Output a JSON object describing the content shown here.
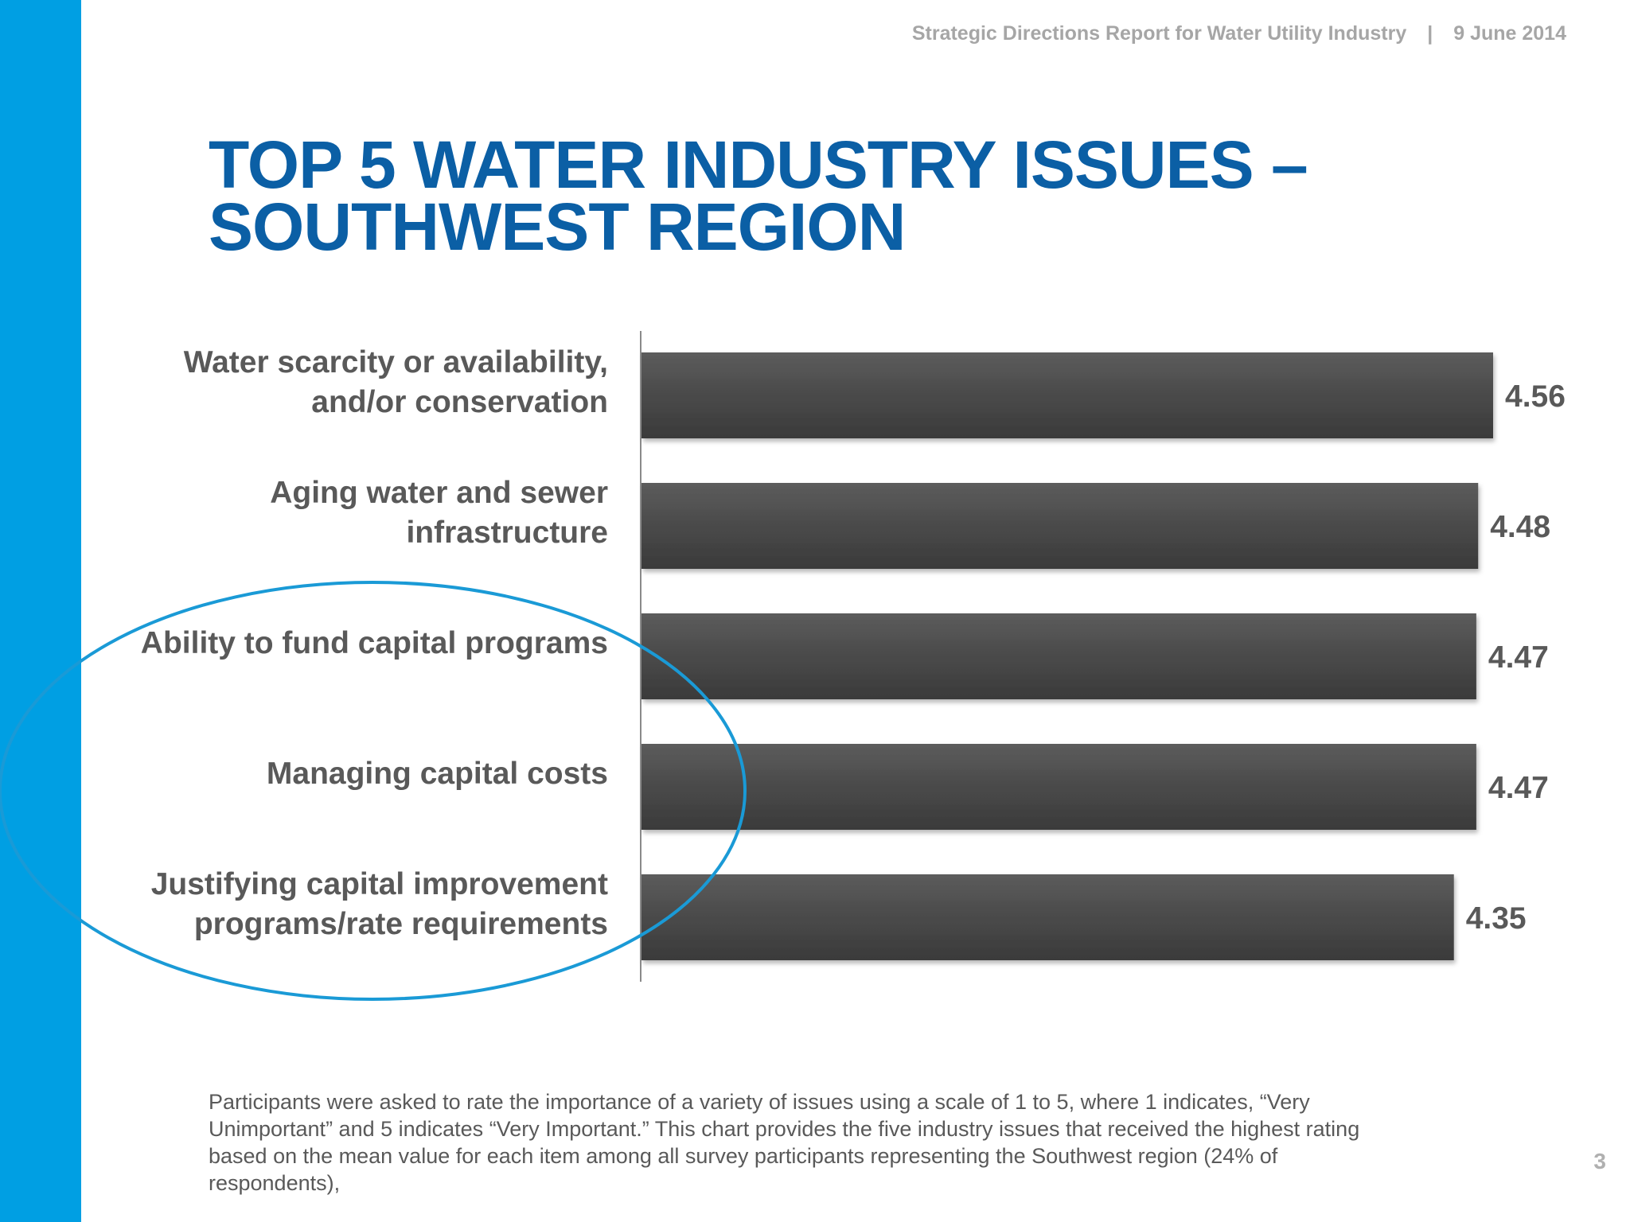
{
  "header": {
    "report_title": "Strategic Directions Report for Water Utility Industry",
    "separator": "|",
    "date": "9 June 2014"
  },
  "title": {
    "line1": "TOP 5 WATER INDUSTRY ISSUES –",
    "line2": "SOUTHWEST REGION"
  },
  "colors": {
    "accent_bar": "#009fe3",
    "title": "#0b5fa5",
    "bar": "#4a4a4a",
    "highlight_ellipse": "#1a9ad6"
  },
  "chart_data": {
    "type": "bar",
    "orientation": "horizontal",
    "categories": [
      [
        "Water scarcity or availability,",
        "and/or conservation"
      ],
      [
        "Aging water and sewer",
        "infrastructure"
      ],
      [
        "Ability to fund capital programs"
      ],
      [
        "Managing capital costs"
      ],
      [
        "Justifying capital improvement",
        "programs/rate requirements"
      ]
    ],
    "values": [
      4.56,
      4.48,
      4.47,
      4.47,
      4.35
    ],
    "data_labels": [
      "4.56",
      "4.48",
      "4.47",
      "4.47",
      "4.35"
    ],
    "xlim": [
      0,
      4.56
    ],
    "title": "",
    "xlabel": "",
    "ylabel": "",
    "grid": false,
    "legend": "none",
    "highlighted_categories": [
      2,
      3,
      4
    ]
  },
  "footnote": "Participants were asked to rate the importance of a variety of issues using a scale of 1 to 5, where 1 indicates, “Very Unimportant” and 5 indicates “Very Important.” This chart provides the five industry issues that received the highest rating based on the mean value for each item among all survey participants representing the Southwest region (24% of respondents),",
  "page_number": "3"
}
